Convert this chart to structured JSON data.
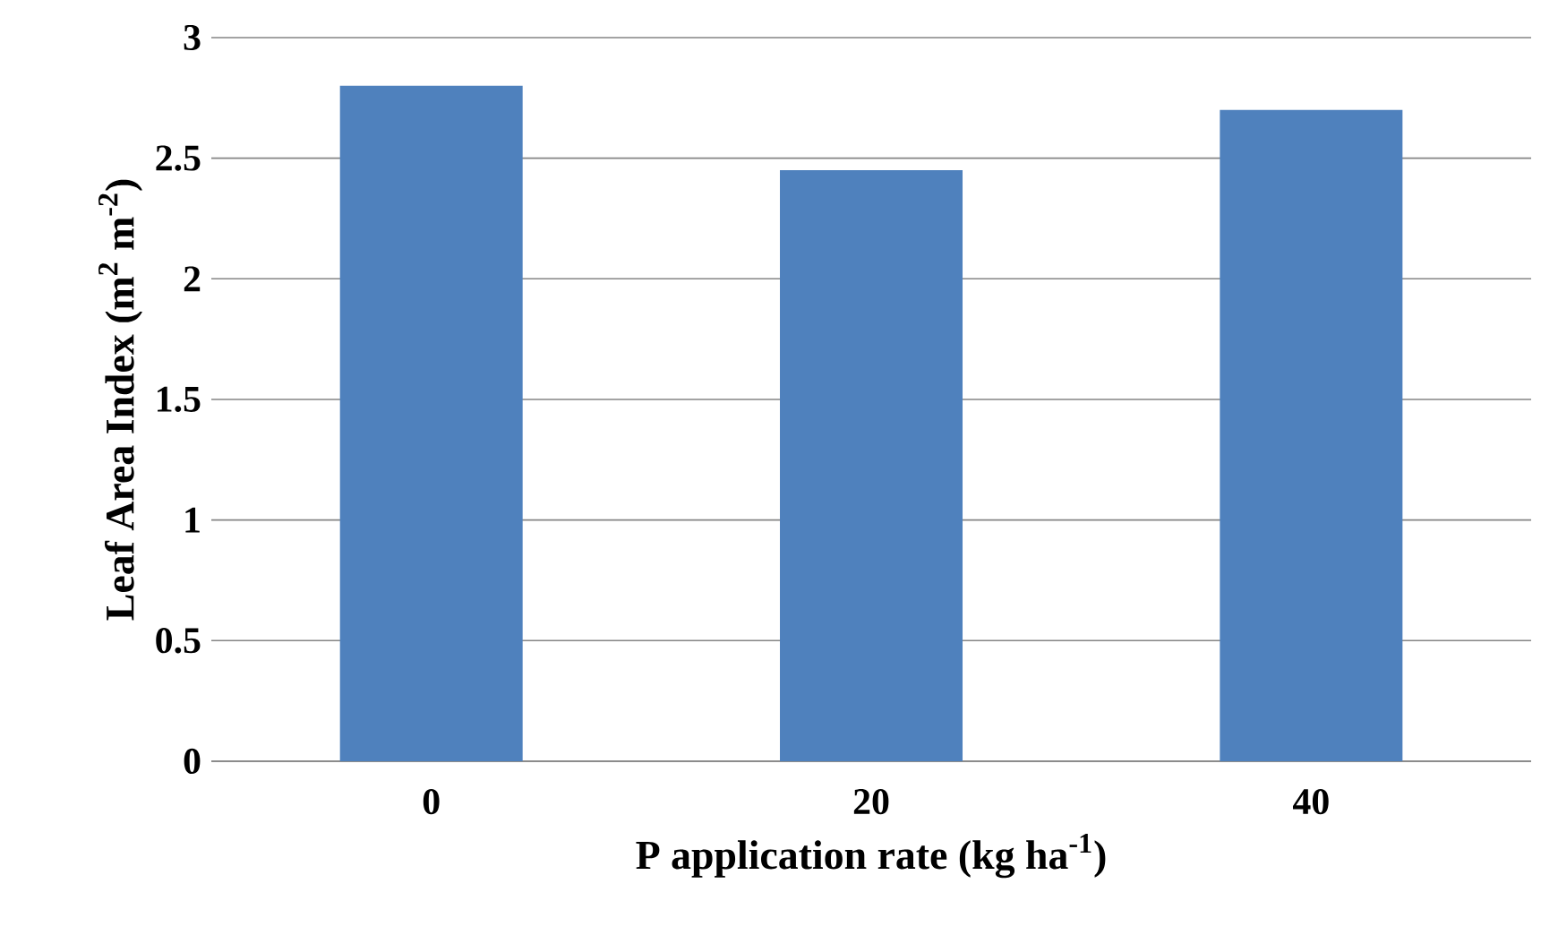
{
  "chart_data": {
    "type": "bar",
    "xlabel": "P application rate (kg ha$^{-1}$)",
    "ylabel": "Leaf Area Index (m$^{2}$ m$^{-2}$)",
    "categories": [
      "0",
      "20",
      "40"
    ],
    "values": [
      2.8,
      2.45,
      2.7
    ],
    "color": "#4f81bd",
    "ylim": [
      0,
      3
    ],
    "yticks": [
      0,
      0.5,
      1,
      1.5,
      2,
      2.5,
      3
    ],
    "grid": "y"
  }
}
